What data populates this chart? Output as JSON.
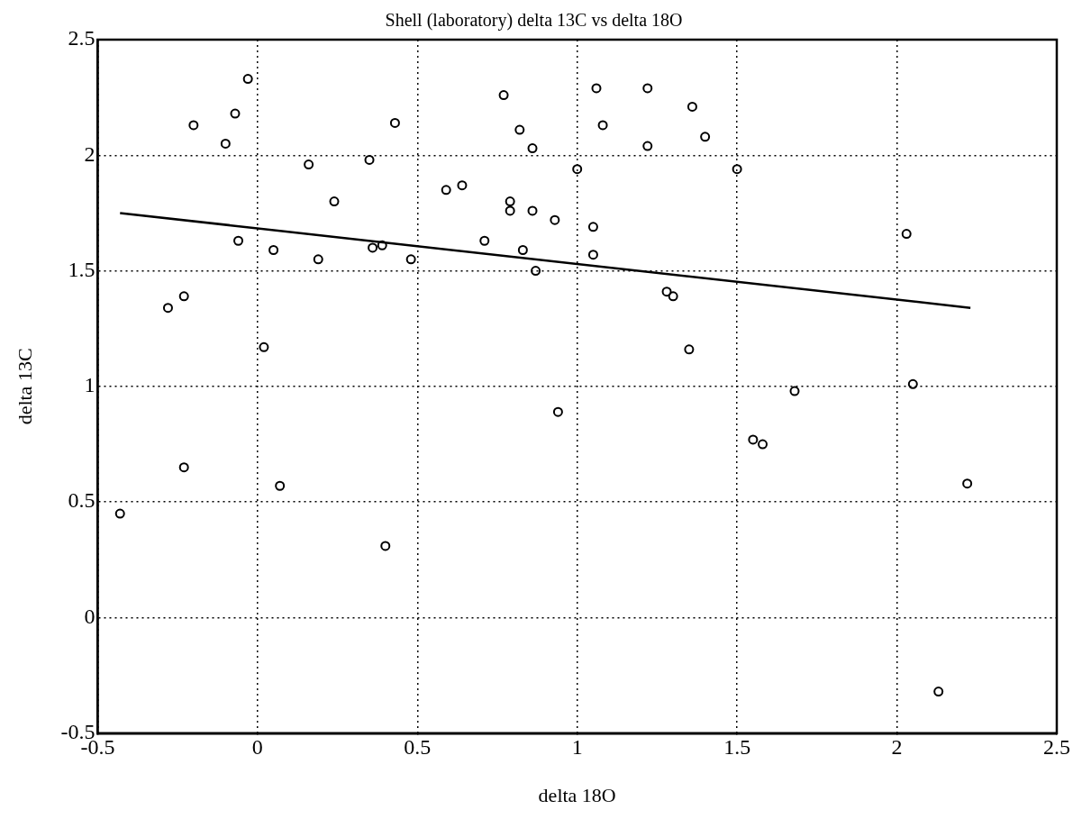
{
  "chart_data": {
    "type": "scatter",
    "title": "Shell (laboratory) delta 13C vs delta 18O",
    "xlabel": "delta 18O",
    "ylabel": "delta 13C",
    "xlim": [
      -0.5,
      2.5
    ],
    "xticks": [
      -0.5,
      0,
      0.5,
      1,
      1.5,
      2,
      2.5
    ],
    "ylim": [
      -0.5,
      2.5
    ],
    "yticks": [
      -0.5,
      0,
      0.5,
      1,
      1.5,
      2,
      2.5
    ],
    "grid": true,
    "marker": "circle",
    "series": [
      {
        "type": "scatter",
        "color": "#000000",
        "x": [
          -0.43,
          -0.28,
          -0.23,
          -0.23,
          -0.2,
          -0.1,
          -0.07,
          -0.03,
          -0.06,
          0.02,
          0.05,
          0.07,
          0.16,
          0.19,
          0.24,
          0.35,
          0.36,
          0.39,
          0.43,
          0.4,
          0.48,
          0.59,
          0.64,
          0.71,
          0.77,
          0.79,
          0.79,
          0.82,
          0.83,
          0.86,
          0.86,
          0.87,
          0.93,
          0.94,
          1.0,
          1.06,
          1.08,
          1.05,
          1.05,
          1.22,
          1.22,
          1.36,
          1.4,
          1.28,
          1.3,
          1.35,
          1.5,
          2.03,
          2.05,
          1.68,
          1.55,
          1.58,
          2.22,
          2.13
        ],
        "values": [
          0.45,
          1.34,
          1.39,
          0.65,
          2.13,
          2.05,
          2.18,
          2.33,
          1.63,
          1.17,
          1.59,
          0.57,
          1.96,
          1.55,
          1.8,
          1.98,
          1.6,
          1.61,
          2.14,
          0.31,
          1.55,
          1.85,
          1.87,
          1.63,
          2.26,
          1.8,
          1.76,
          2.11,
          1.59,
          2.03,
          1.76,
          1.5,
          1.72,
          0.89,
          1.94,
          2.29,
          2.13,
          1.69,
          1.57,
          2.29,
          2.04,
          2.21,
          2.08,
          1.41,
          1.39,
          1.16,
          1.94,
          1.66,
          1.01,
          0.98,
          0.77,
          0.75,
          0.58,
          -0.32
        ]
      },
      {
        "type": "line",
        "color": "#000000",
        "marker": "none",
        "x": [
          -0.43,
          2.23
        ],
        "values": [
          1.75,
          1.34
        ]
      }
    ]
  }
}
